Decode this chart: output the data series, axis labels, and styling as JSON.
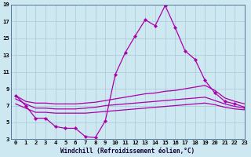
{
  "xlabel": "Windchill (Refroidissement éolien,°C)",
  "bg_color": "#cde8f0",
  "grid_color": "#aac8d8",
  "line_color": "#aa00aa",
  "x": [
    0,
    1,
    2,
    3,
    4,
    5,
    6,
    7,
    8,
    9,
    10,
    11,
    12,
    13,
    14,
    15,
    16,
    17,
    18,
    19,
    20,
    21,
    22,
    23
  ],
  "line1": [
    8.2,
    7.0,
    5.5,
    5.5,
    4.5,
    4.3,
    4.3,
    3.3,
    3.2,
    5.2,
    10.7,
    13.3,
    15.3,
    17.2,
    16.5,
    18.9,
    16.3,
    13.5,
    12.5,
    10.0,
    8.5,
    7.5,
    7.2,
    6.8
  ],
  "line2": [
    8.2,
    7.5,
    7.3,
    7.3,
    7.2,
    7.2,
    7.2,
    7.3,
    7.4,
    7.6,
    7.8,
    8.0,
    8.2,
    8.4,
    8.5,
    8.7,
    8.8,
    9.0,
    9.2,
    9.4,
    8.8,
    7.9,
    7.5,
    7.2
  ],
  "line3": [
    7.8,
    7.2,
    6.7,
    6.7,
    6.6,
    6.6,
    6.6,
    6.7,
    6.8,
    7.0,
    7.1,
    7.2,
    7.3,
    7.4,
    7.5,
    7.6,
    7.7,
    7.8,
    7.9,
    8.0,
    7.6,
    7.2,
    6.9,
    6.7
  ],
  "line4": [
    7.2,
    6.7,
    6.2,
    6.2,
    6.1,
    6.1,
    6.1,
    6.1,
    6.2,
    6.3,
    6.4,
    6.5,
    6.6,
    6.7,
    6.8,
    6.9,
    7.0,
    7.1,
    7.2,
    7.3,
    7.1,
    6.8,
    6.6,
    6.5
  ],
  "ylim": [
    3,
    19
  ],
  "xlim": [
    -0.5,
    23
  ],
  "yticks": [
    3,
    5,
    7,
    9,
    11,
    13,
    15,
    17,
    19
  ],
  "xticks": [
    0,
    1,
    2,
    3,
    4,
    5,
    6,
    7,
    8,
    9,
    10,
    11,
    12,
    13,
    14,
    15,
    16,
    17,
    18,
    19,
    20,
    21,
    22,
    23
  ],
  "xlabel_fontsize": 5.5,
  "tick_fontsize": 5.2,
  "linewidth": 0.9,
  "markersize": 2.2
}
